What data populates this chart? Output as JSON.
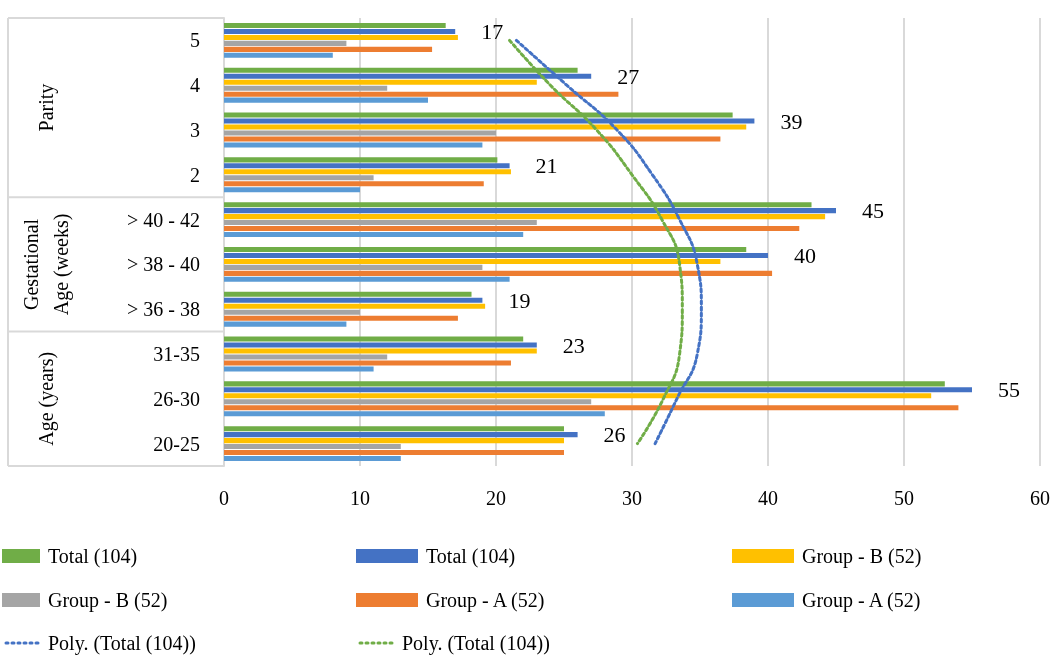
{
  "chart_data": {
    "type": "bar",
    "orientation": "horizontal",
    "categories": [
      "5",
      "4",
      "3",
      "2",
      "> 40 - 42",
      "> 38 - 40",
      "> 36 - 38",
      "31-35",
      "26-30",
      "20-25"
    ],
    "series": [
      {
        "name": "Total (104)",
        "color": "#70ad47",
        "values": [
          16.3,
          26,
          37.4,
          20.1,
          43.2,
          38.4,
          18.2,
          22,
          53,
          25
        ]
      },
      {
        "name": "Total (104)",
        "color": "#4472c4",
        "values": [
          17,
          27,
          39,
          21,
          45,
          40,
          19,
          23,
          55,
          26
        ],
        "value_labels": [
          "17",
          "27",
          "39",
          "21",
          "45",
          "40",
          "19",
          "23",
          "55",
          "26"
        ]
      },
      {
        "name": "Group - B (52)",
        "color": "#ffc000",
        "values": [
          17.2,
          23,
          38.4,
          21.1,
          44.2,
          36.5,
          19.2,
          23,
          52,
          25
        ]
      },
      {
        "name": "Group - B (52)",
        "color": "#a5a5a5",
        "values": [
          9,
          12,
          20,
          11,
          23,
          19,
          10,
          12,
          27,
          13
        ]
      },
      {
        "name": "Group - A (52)",
        "color": "#ed7d31",
        "values": [
          15.3,
          29,
          36.5,
          19.1,
          42.3,
          40.3,
          17.2,
          21.1,
          54,
          25
        ]
      },
      {
        "name": "Group - A (52)",
        "color": "#5b9bd5",
        "values": [
          8,
          15,
          19,
          10,
          22,
          21,
          9,
          11,
          28,
          13
        ]
      },
      {
        "name": "Poly. (Total (104))",
        "type": "line",
        "color": "#4472c4",
        "values": [
          21.5,
          25.2,
          28.9,
          31.5,
          33.5,
          34.8,
          35.1,
          34.8,
          33.3,
          31.7
        ]
      },
      {
        "name": "Poly. (Total (104))",
        "type": "line",
        "color": "#70ad47",
        "values": [
          21,
          24,
          27.4,
          30,
          32.2,
          33.5,
          33.7,
          33.5,
          32.3,
          30.4
        ]
      }
    ],
    "xlim": [
      0,
      60
    ],
    "xticks": [
      0,
      10,
      20,
      30,
      40,
      50,
      60
    ],
    "grid": "x",
    "legend": "bottom",
    "line_style": "dotted",
    "marker": "none",
    "annotations": [
      "Parity",
      "Gestational\nAge (weeks)",
      "Age (years)"
    ]
  }
}
